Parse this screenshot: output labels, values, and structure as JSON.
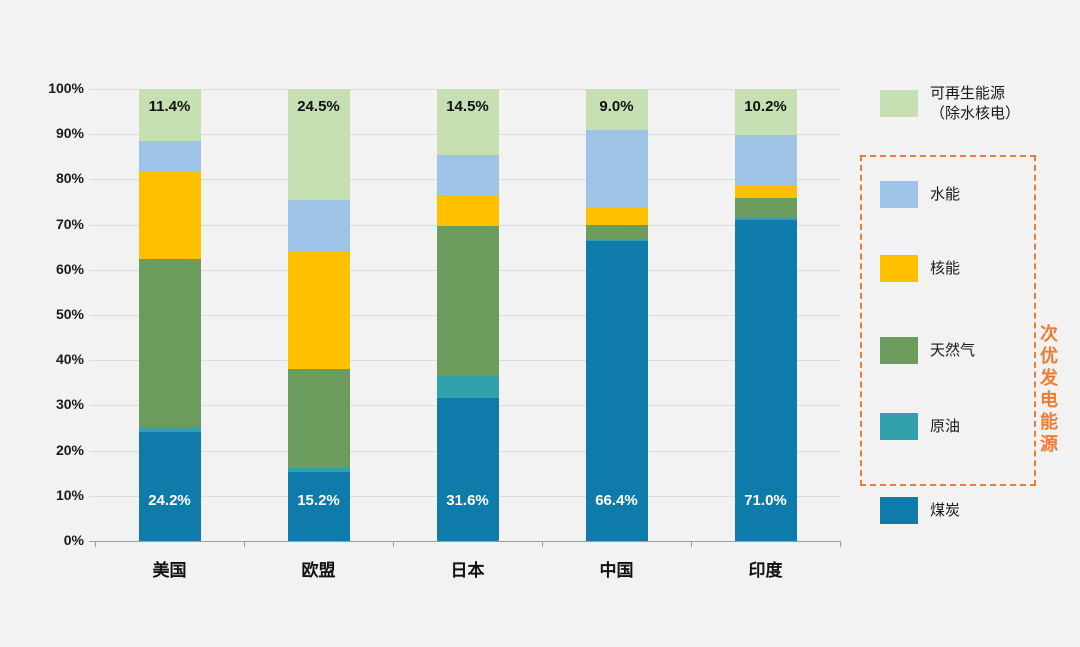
{
  "colors": {
    "background": "#f2f2f2",
    "grid": "#dcdcdc",
    "axis": "#9e9e9e",
    "annotation": "#ed7d31"
  },
  "chart_data": {
    "type": "bar",
    "stacked": true,
    "title": "",
    "xlabel": "",
    "ylabel": "",
    "categories": [
      "美国",
      "欧盟",
      "日本",
      "中国",
      "印度"
    ],
    "series": [
      {
        "key": "coal",
        "name": "煤炭",
        "color": "#0e7bab",
        "values": [
          24.2,
          15.2,
          31.6,
          66.4,
          71.0
        ]
      },
      {
        "key": "oil",
        "name": "原油",
        "color": "#31a2ab",
        "values": [
          1.0,
          1.0,
          5.0,
          0.2,
          0.5
        ]
      },
      {
        "key": "gas",
        "name": "天然气",
        "color": "#6b9c5e",
        "values": [
          37.3,
          21.8,
          33.0,
          3.4,
          4.3
        ]
      },
      {
        "key": "nuclear",
        "name": "核能",
        "color": "#ffc000",
        "values": [
          19.1,
          26.0,
          7.0,
          4.0,
          3.0
        ]
      },
      {
        "key": "hydro",
        "name": "水能",
        "color": "#9dc3e6",
        "values": [
          7.0,
          11.5,
          8.9,
          17.0,
          11.0
        ]
      },
      {
        "key": "renewables",
        "name": "可再生能源（除水核电）",
        "color": "#c6e0b4",
        "values": [
          11.4,
          24.5,
          14.5,
          9.0,
          10.2
        ]
      }
    ],
    "bar_labels_top": [
      "11.4%",
      "24.5%",
      "14.5%",
      "9.0%",
      "10.2%"
    ],
    "bar_labels_bottom": [
      "24.2%",
      "15.2%",
      "31.6%",
      "66.4%",
      "71.0%"
    ],
    "ylim": [
      0,
      100
    ],
    "yticks": [
      "0%",
      "10%",
      "20%",
      "30%",
      "40%",
      "50%",
      "60%",
      "70%",
      "80%",
      "90%",
      "100%"
    ],
    "grid": true,
    "legend_position": "right"
  },
  "legend": {
    "items": [
      {
        "key": "renewables",
        "label": "可再生能源\n（除水核电）",
        "color": "#c6e0b4"
      },
      {
        "key": "hydro",
        "label": "水能",
        "color": "#9dc3e6"
      },
      {
        "key": "nuclear",
        "label": "核能",
        "color": "#ffc000"
      },
      {
        "key": "gas",
        "label": "天然气",
        "color": "#6b9c5e"
      },
      {
        "key": "oil",
        "label": "原油",
        "color": "#31a2ab"
      },
      {
        "key": "coal",
        "label": "煤炭",
        "color": "#0e7bab"
      }
    ],
    "annotation": {
      "label": "次优发电能源",
      "color": "#ed7d31",
      "encloses": [
        "水能",
        "核能",
        "天然气",
        "原油"
      ]
    }
  }
}
